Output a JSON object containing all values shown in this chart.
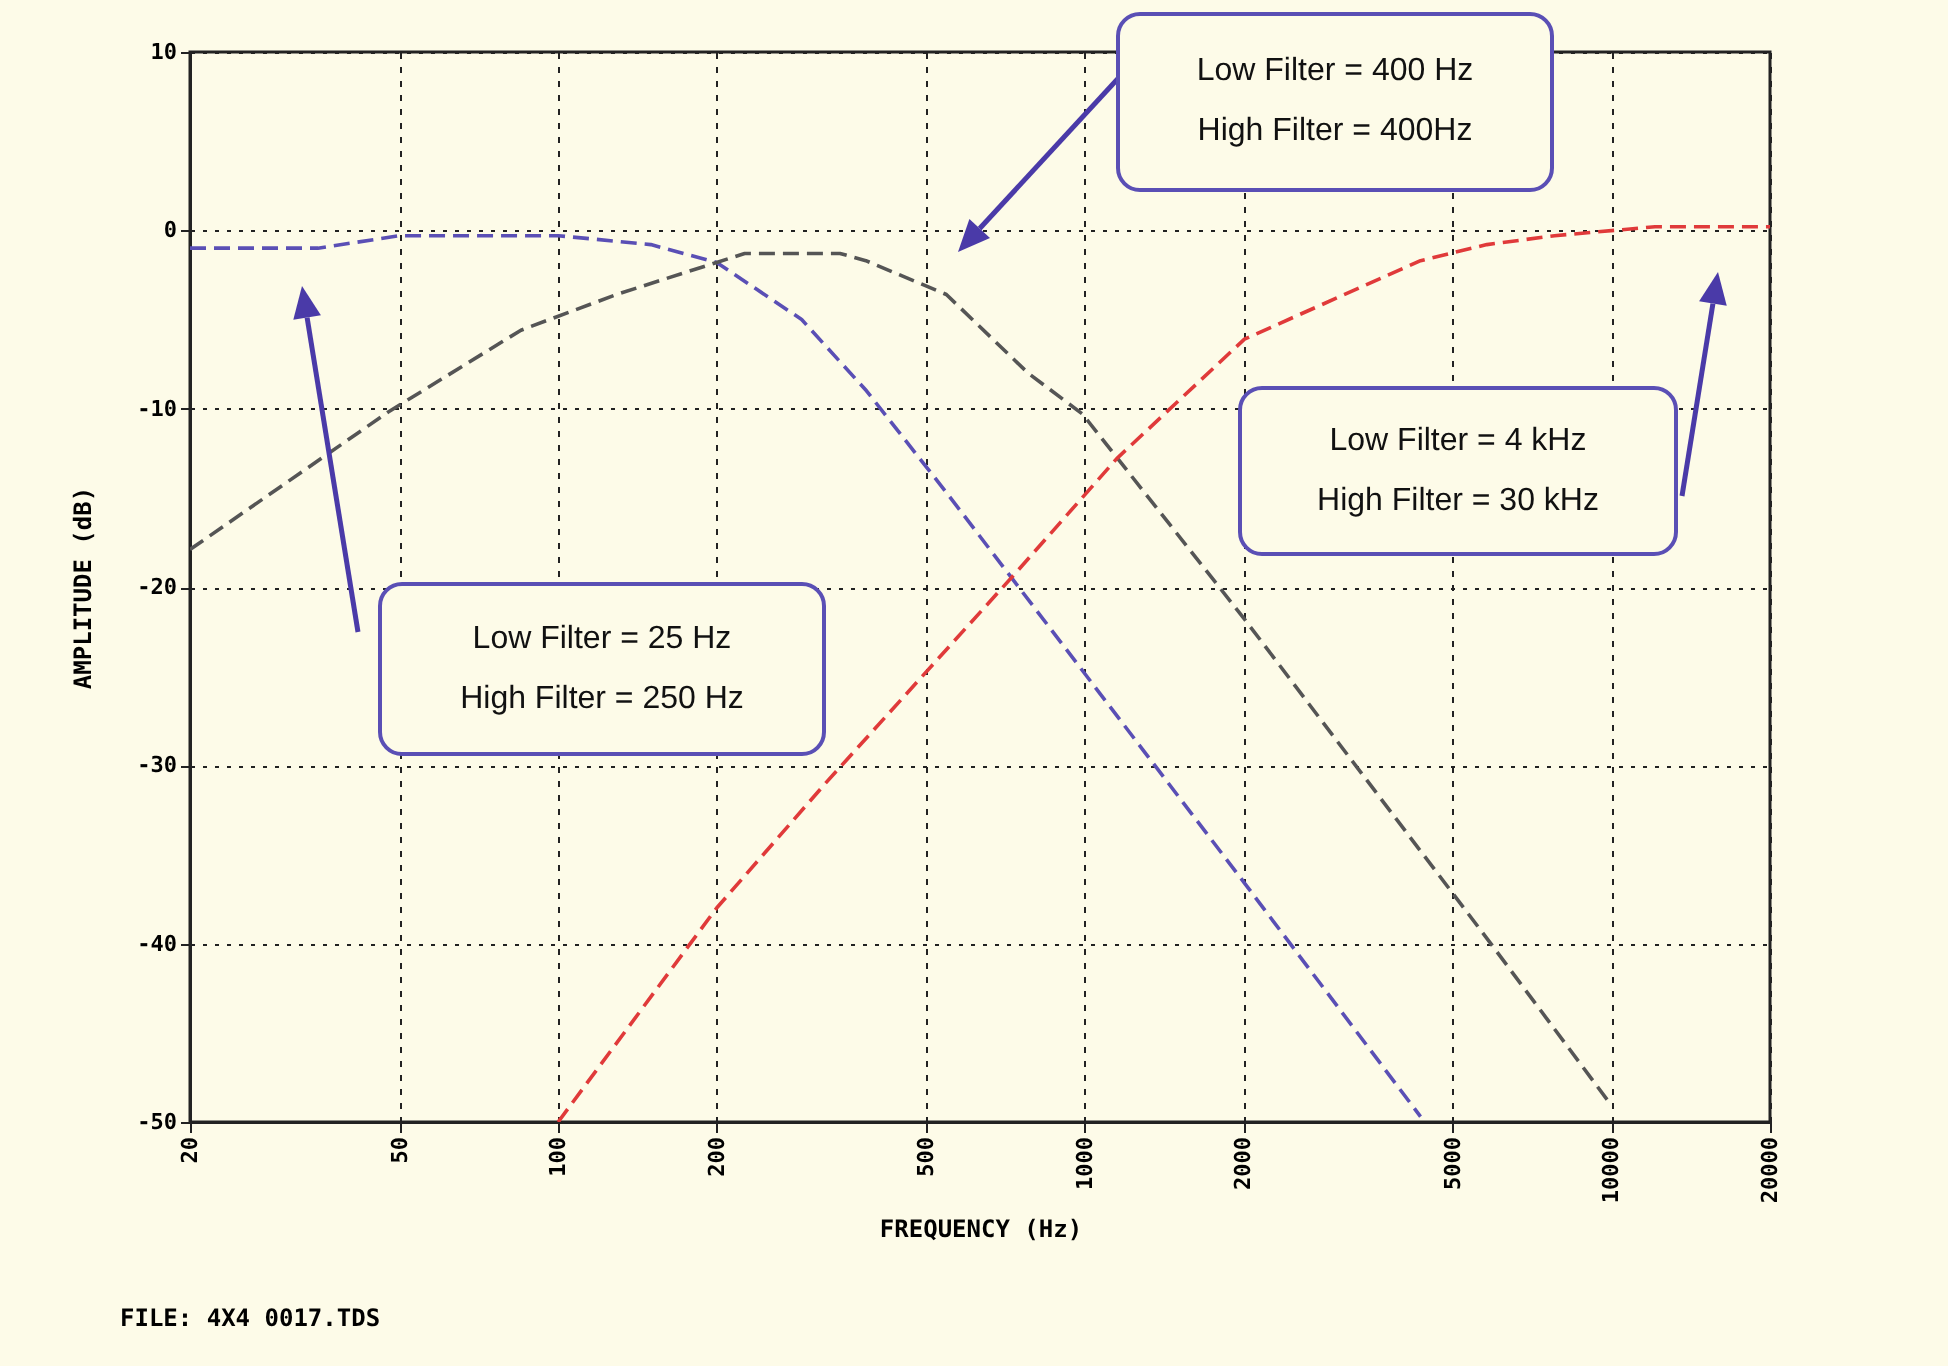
{
  "chart_data": {
    "type": "line",
    "xlabel": "FREQUENCY (Hz)",
    "ylabel": "AMPLITUDE (dB)",
    "log": "x",
    "xlim": [
      20,
      20000
    ],
    "xticks": [
      20,
      50,
      100,
      200,
      500,
      1000,
      2000,
      5000,
      10000,
      20000
    ],
    "ylim": [
      -50,
      10
    ],
    "yticks": [
      -50,
      -40,
      -30,
      -20,
      -10,
      0,
      10
    ],
    "grid": true,
    "line_style": "dashed",
    "series": [
      {
        "color": "#5a4fb5",
        "x": [
          20,
          35,
          50,
          100,
          150,
          200,
          290,
          385,
          546,
          906,
          2010,
          4340
        ],
        "values": [
          -1,
          -1,
          -0.3,
          -0.3,
          -0.8,
          -1.8,
          -5,
          -9,
          -14.7,
          -23.2,
          -36.6,
          -49.7
        ]
      },
      {
        "color": "#555555",
        "x": [
          20,
          47.5,
          85,
          129,
          200,
          226,
          343,
          384,
          546,
          780,
          990,
          2010,
          5800,
          9900
        ],
        "values": [
          -17.9,
          -10.2,
          -5.6,
          -3.6,
          -1.8,
          -1.3,
          -1.3,
          -1.7,
          -3.6,
          -8,
          -10.3,
          -21.8,
          -39.7,
          -48.9
        ]
      },
      {
        "color": "#e03a3a",
        "x": [
          100,
          200,
          322,
          740,
          1150,
          2010,
          4340,
          5800,
          7800,
          12100,
          20000
        ],
        "values": [
          -50,
          -38,
          -31,
          -19.2,
          -12.8,
          -6.1,
          -1.7,
          -0.8,
          -0.3,
          0.2,
          0.2
        ]
      }
    ],
    "annotations": [
      "Low Filter = 25 Hz\nHigh Filter = 250 Hz",
      "Low Filter = 400 Hz\nHigh Filter = 400Hz",
      "Low Filter = 4 kHz\nHigh Filter = 30 kHz",
      "FILE: 4X4 0017.TDS"
    ]
  }
}
